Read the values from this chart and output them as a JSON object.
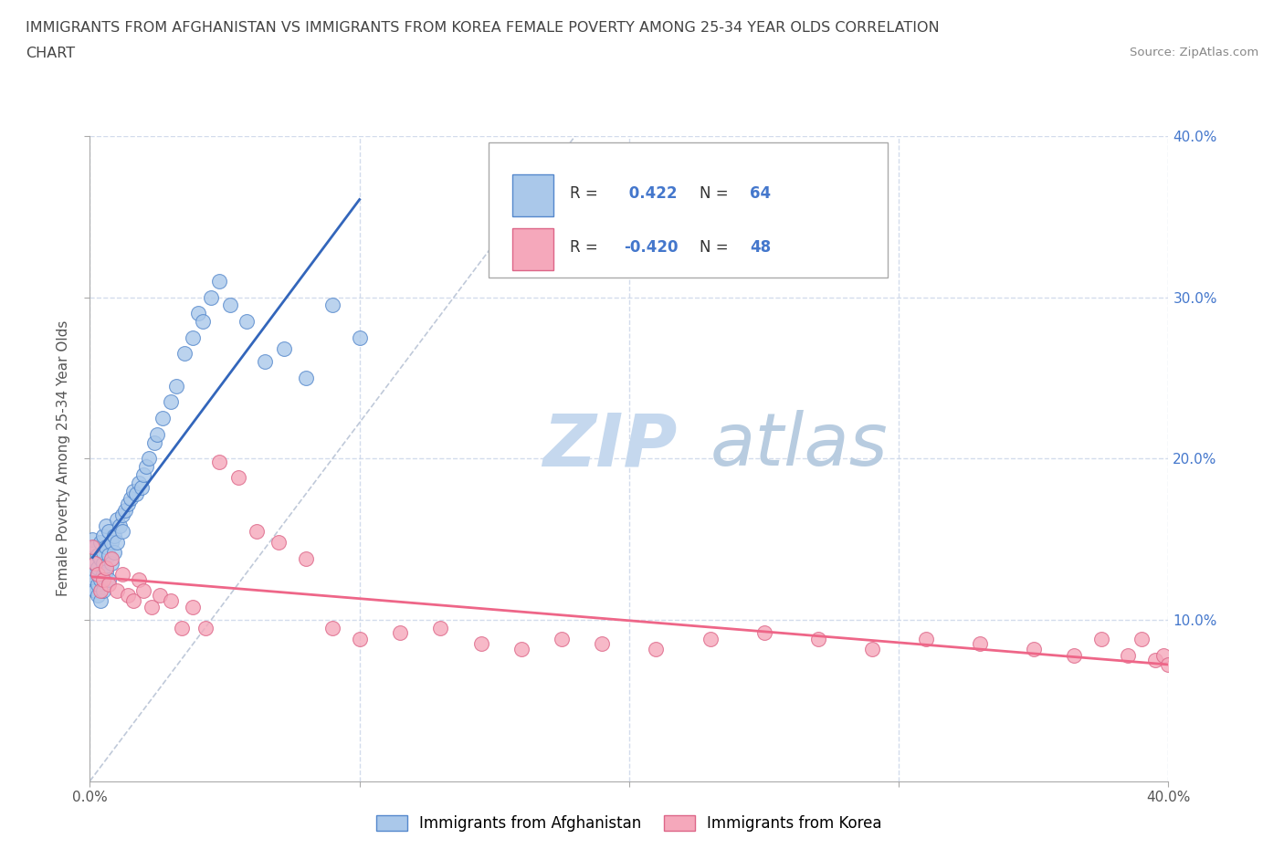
{
  "title_line1": "IMMIGRANTS FROM AFGHANISTAN VS IMMIGRANTS FROM KOREA FEMALE POVERTY AMONG 25-34 YEAR OLDS CORRELATION",
  "title_line2": "CHART",
  "source_text": "Source: ZipAtlas.com",
  "ylabel": "Female Poverty Among 25-34 Year Olds",
  "xmin": 0.0,
  "xmax": 0.4,
  "ymin": 0.0,
  "ymax": 0.4,
  "xtick_left": "0.0%",
  "xtick_right": "40.0%",
  "yticks": [
    0.1,
    0.2,
    0.3,
    0.4
  ],
  "ytick_labels_right": [
    "10.0%",
    "20.0%",
    "30.0%",
    "40.0%"
  ],
  "afghanistan_color": "#aac8ea",
  "korea_color": "#f5a8bb",
  "afghanistan_edge_color": "#5588cc",
  "korea_edge_color": "#dd6688",
  "afghanistan_line_color": "#3366bb",
  "korea_line_color": "#ee6688",
  "afghanistan_R": 0.422,
  "afghanistan_N": 64,
  "korea_R": -0.42,
  "korea_N": 48,
  "legend_label_afghanistan": "Immigrants from Afghanistan",
  "legend_label_korea": "Immigrants from Korea",
  "watermark_zip": "ZIP",
  "watermark_atlas": "atlas",
  "watermark_color_zip": "#c5d8ee",
  "watermark_color_atlas": "#b8cce0",
  "afghanistan_x": [
    0.001,
    0.001,
    0.001,
    0.002,
    0.002,
    0.002,
    0.002,
    0.003,
    0.003,
    0.003,
    0.003,
    0.003,
    0.004,
    0.004,
    0.004,
    0.004,
    0.005,
    0.005,
    0.005,
    0.005,
    0.005,
    0.006,
    0.006,
    0.006,
    0.007,
    0.007,
    0.007,
    0.008,
    0.008,
    0.009,
    0.009,
    0.01,
    0.01,
    0.011,
    0.012,
    0.012,
    0.013,
    0.014,
    0.015,
    0.016,
    0.017,
    0.018,
    0.019,
    0.02,
    0.021,
    0.022,
    0.024,
    0.025,
    0.027,
    0.03,
    0.032,
    0.035,
    0.038,
    0.04,
    0.042,
    0.045,
    0.048,
    0.052,
    0.058,
    0.065,
    0.072,
    0.08,
    0.09,
    0.1
  ],
  "afghanistan_y": [
    0.13,
    0.15,
    0.12,
    0.145,
    0.135,
    0.125,
    0.118,
    0.128,
    0.14,
    0.115,
    0.132,
    0.122,
    0.138,
    0.125,
    0.148,
    0.112,
    0.135,
    0.142,
    0.128,
    0.152,
    0.118,
    0.145,
    0.13,
    0.158,
    0.14,
    0.125,
    0.155,
    0.148,
    0.135,
    0.152,
    0.142,
    0.162,
    0.148,
    0.158,
    0.165,
    0.155,
    0.168,
    0.172,
    0.175,
    0.18,
    0.178,
    0.185,
    0.182,
    0.19,
    0.195,
    0.2,
    0.21,
    0.215,
    0.225,
    0.235,
    0.245,
    0.265,
    0.275,
    0.29,
    0.285,
    0.3,
    0.31,
    0.295,
    0.285,
    0.26,
    0.268,
    0.25,
    0.295,
    0.275
  ],
  "korea_x": [
    0.001,
    0.002,
    0.003,
    0.004,
    0.005,
    0.006,
    0.007,
    0.008,
    0.01,
    0.012,
    0.014,
    0.016,
    0.018,
    0.02,
    0.023,
    0.026,
    0.03,
    0.034,
    0.038,
    0.043,
    0.048,
    0.055,
    0.062,
    0.07,
    0.08,
    0.09,
    0.1,
    0.115,
    0.13,
    0.145,
    0.16,
    0.175,
    0.19,
    0.21,
    0.23,
    0.25,
    0.27,
    0.29,
    0.31,
    0.33,
    0.35,
    0.365,
    0.375,
    0.385,
    0.39,
    0.395,
    0.398,
    0.4
  ],
  "korea_y": [
    0.145,
    0.135,
    0.128,
    0.118,
    0.125,
    0.132,
    0.122,
    0.138,
    0.118,
    0.128,
    0.115,
    0.112,
    0.125,
    0.118,
    0.108,
    0.115,
    0.112,
    0.095,
    0.108,
    0.095,
    0.198,
    0.188,
    0.155,
    0.148,
    0.138,
    0.095,
    0.088,
    0.092,
    0.095,
    0.085,
    0.082,
    0.088,
    0.085,
    0.082,
    0.088,
    0.092,
    0.088,
    0.082,
    0.088,
    0.085,
    0.082,
    0.078,
    0.088,
    0.078,
    0.088,
    0.075,
    0.078,
    0.072
  ],
  "background_color": "#ffffff",
  "grid_color": "#c8d4e8",
  "title_color": "#444444",
  "axis_label_color": "#555555",
  "legend_R_color": "#333333",
  "legend_N_color": "#4477cc"
}
